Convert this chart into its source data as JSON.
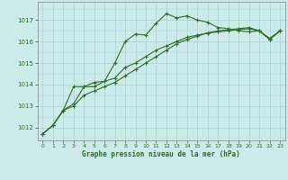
{
  "title": "Graphe pression niveau de la mer (hPa)",
  "bg_color": "#cceae8",
  "grid_color": "#aad4d0",
  "line_color": "#2d6e2d",
  "xlim": [
    -0.5,
    23.5
  ],
  "ylim": [
    1011.4,
    1017.85
  ],
  "yticks": [
    1012,
    1013,
    1014,
    1015,
    1016,
    1017
  ],
  "xticks": [
    0,
    1,
    2,
    3,
    4,
    5,
    6,
    7,
    8,
    9,
    10,
    11,
    12,
    13,
    14,
    15,
    16,
    17,
    18,
    19,
    20,
    21,
    22,
    23
  ],
  "series": [
    [
      1011.7,
      1012.1,
      1012.8,
      1013.9,
      1013.9,
      1014.1,
      1014.15,
      1015.0,
      1016.0,
      1016.35,
      1016.3,
      1016.85,
      1017.3,
      1017.1,
      1017.2,
      1017.0,
      1016.9,
      1016.65,
      1016.6,
      1016.5,
      1016.45,
      1016.5,
      1016.1,
      1016.5
    ],
    [
      1011.7,
      1012.1,
      1012.8,
      1013.1,
      1013.9,
      1013.9,
      1014.15,
      1014.3,
      1014.8,
      1015.0,
      1015.3,
      1015.6,
      1015.8,
      1016.0,
      1016.2,
      1016.3,
      1016.4,
      1016.5,
      1016.55,
      1016.6,
      1016.65,
      1016.5,
      1016.1,
      1016.5
    ],
    [
      1011.7,
      1012.1,
      1012.8,
      1013.0,
      1013.5,
      1013.7,
      1013.9,
      1014.1,
      1014.4,
      1014.7,
      1015.0,
      1015.3,
      1015.6,
      1015.9,
      1016.1,
      1016.25,
      1016.4,
      1016.45,
      1016.5,
      1016.55,
      1016.6,
      1016.5,
      1016.15,
      1016.5
    ]
  ]
}
